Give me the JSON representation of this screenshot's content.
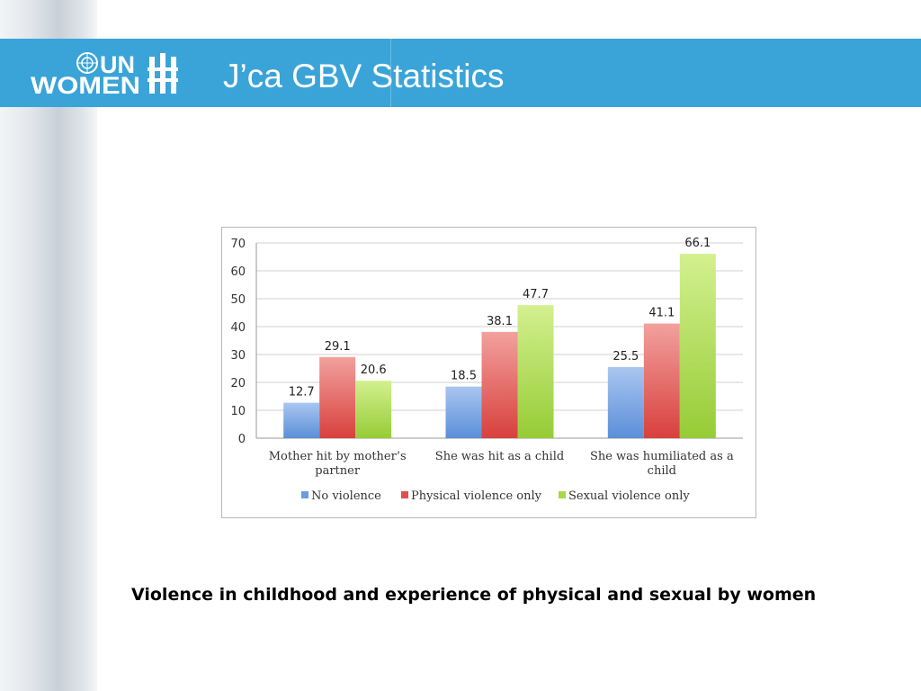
{
  "header": {
    "logo_text_top": "UN",
    "logo_text_bottom": "WOMEN",
    "title": "J’ca GBV Statistics"
  },
  "colors": {
    "header_bg": "#3aa4d8",
    "no_violence": "#6a9de0",
    "physical_violence": "#e0504c",
    "sexual_violence": "#a8d848"
  },
  "chart_data": {
    "type": "bar",
    "categories": [
      "Mother hit by mother’s partner",
      "She was hit as a child",
      "She was humiliated as a child"
    ],
    "category_lines": [
      [
        "Mother hit by mother’s",
        "partner"
      ],
      [
        "She was hit as a child"
      ],
      [
        "She was humiliated as a",
        "child"
      ]
    ],
    "series": [
      {
        "name": "No violence",
        "values": [
          12.7,
          18.5,
          25.5
        ]
      },
      {
        "name": "Physical violence only",
        "values": [
          29.1,
          38.1,
          41.1
        ]
      },
      {
        "name": "Sexual violence only",
        "values": [
          20.6,
          47.7,
          66.1
        ]
      }
    ],
    "ylim": [
      0,
      70
    ],
    "yticks": [
      0,
      10,
      20,
      30,
      40,
      50,
      60,
      70
    ],
    "grid": true,
    "legend_position": "bottom"
  },
  "caption": "Violence in childhood and experience of physical and sexual by women"
}
